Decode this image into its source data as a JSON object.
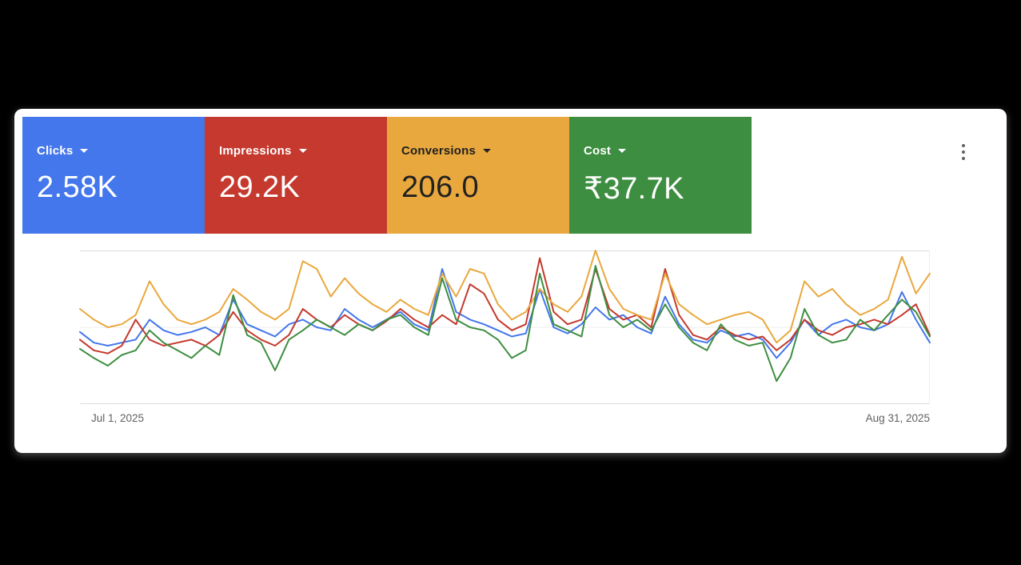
{
  "page": {
    "background": "#000000",
    "card_background": "#ffffff"
  },
  "card": {
    "metrics": [
      {
        "label": "Clicks",
        "value": "2.58K",
        "bg": "#4477eb",
        "fg": "#ffffff"
      },
      {
        "label": "Impressions",
        "value": "29.2K",
        "bg": "#c5392e",
        "fg": "#ffffff"
      },
      {
        "label": "Conversions",
        "value": "206.0",
        "bg": "#e9a83d",
        "fg": "#212121"
      },
      {
        "label": "Cost",
        "value": "₹37.7K",
        "bg": "#3e8e41",
        "fg": "#ffffff"
      }
    ],
    "menu_icon": "vertical-ellipsis"
  },
  "chart_data": {
    "type": "line",
    "title": "",
    "xlabel": "",
    "ylabel": "",
    "legend": "none",
    "grid": "horizontal",
    "ylim": [
      0,
      100
    ],
    "x": {
      "start": "2025-07-01",
      "end": "2025-08-31",
      "points": 62
    },
    "x_start_label": "Jul 1, 2025",
    "x_end_label": "Aug 31, 2025",
    "series": [
      {
        "name": "Clicks",
        "color": "#4477eb",
        "values": [
          47,
          40,
          38,
          40,
          42,
          55,
          48,
          45,
          47,
          50,
          45,
          68,
          52,
          48,
          44,
          52,
          55,
          50,
          48,
          62,
          55,
          50,
          55,
          60,
          52,
          48,
          88,
          60,
          55,
          52,
          48,
          44,
          46,
          75,
          50,
          46,
          52,
          63,
          55,
          58,
          50,
          46,
          70,
          52,
          42,
          40,
          48,
          44,
          46,
          42,
          30,
          40,
          55,
          45,
          52,
          55,
          50,
          48,
          52,
          73,
          55,
          40
        ]
      },
      {
        "name": "Impressions",
        "color": "#c5392e",
        "values": [
          42,
          35,
          33,
          38,
          55,
          42,
          38,
          40,
          42,
          38,
          45,
          60,
          48,
          42,
          38,
          45,
          62,
          55,
          50,
          58,
          52,
          48,
          54,
          62,
          55,
          50,
          58,
          52,
          78,
          72,
          55,
          48,
          52,
          95,
          60,
          52,
          55,
          88,
          62,
          55,
          58,
          50,
          88,
          58,
          45,
          42,
          50,
          45,
          42,
          44,
          35,
          42,
          55,
          48,
          45,
          50,
          52,
          55,
          52,
          58,
          65,
          45
        ]
      },
      {
        "name": "Conversions",
        "color": "#e9a83d",
        "values": [
          62,
          55,
          50,
          52,
          58,
          80,
          65,
          55,
          52,
          55,
          60,
          75,
          68,
          60,
          55,
          62,
          93,
          88,
          70,
          82,
          72,
          65,
          60,
          68,
          62,
          58,
          85,
          70,
          88,
          85,
          65,
          55,
          60,
          75,
          65,
          60,
          70,
          100,
          75,
          62,
          58,
          55,
          85,
          65,
          58,
          52,
          55,
          58,
          60,
          55,
          40,
          48,
          80,
          70,
          75,
          65,
          58,
          62,
          68,
          96,
          72,
          85
        ]
      },
      {
        "name": "Cost",
        "color": "#3e8e41",
        "values": [
          36,
          30,
          25,
          32,
          35,
          48,
          40,
          35,
          30,
          38,
          32,
          71,
          45,
          40,
          22,
          42,
          48,
          55,
          50,
          45,
          52,
          48,
          55,
          58,
          50,
          45,
          82,
          55,
          50,
          48,
          42,
          30,
          35,
          85,
          52,
          48,
          44,
          90,
          58,
          50,
          55,
          48,
          65,
          50,
          40,
          35,
          52,
          42,
          38,
          40,
          15,
          30,
          62,
          45,
          40,
          42,
          55,
          48,
          58,
          68,
          60,
          44
        ]
      }
    ]
  }
}
